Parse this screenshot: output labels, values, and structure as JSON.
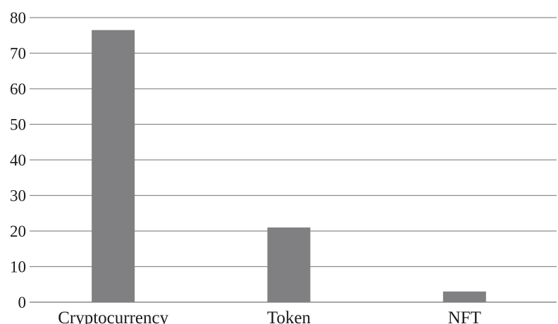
{
  "chart_data": {
    "type": "bar",
    "categories": [
      "Cryptocurrency",
      "Token",
      "NFT"
    ],
    "values": [
      76.5,
      21,
      3
    ],
    "ylim": [
      0,
      80
    ],
    "yticks": [
      0,
      10,
      20,
      30,
      40,
      50,
      60,
      70,
      80
    ],
    "grid": true,
    "bar_color": "#808083",
    "grid_color": "#8c8c8c"
  }
}
